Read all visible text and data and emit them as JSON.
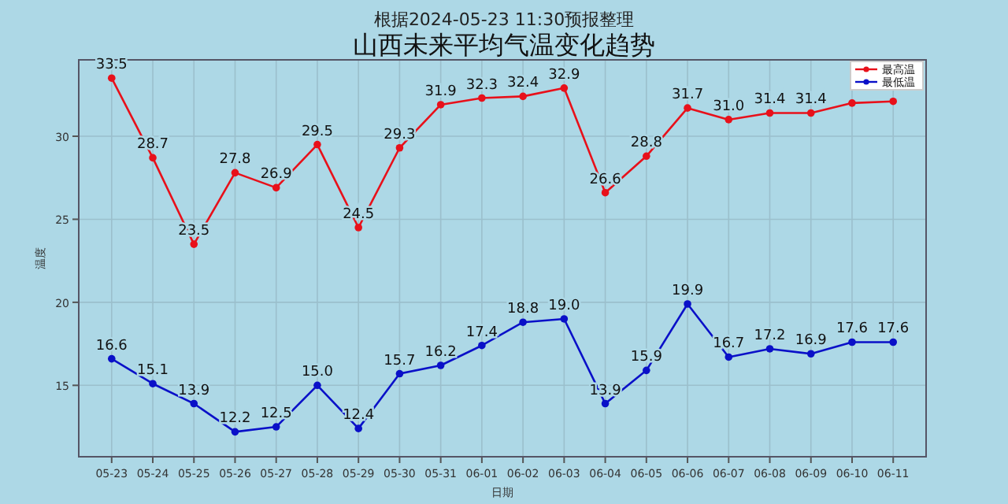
{
  "chart_data": {
    "type": "line",
    "title": "山西未来平均气温变化趋势",
    "subtitle": "根据2024-05-23 11:30预报整理",
    "xlabel": "日期",
    "ylabel": "温度",
    "categories": [
      "05-23",
      "05-24",
      "05-25",
      "05-26",
      "05-27",
      "05-28",
      "05-29",
      "05-30",
      "05-31",
      "06-01",
      "06-02",
      "06-03",
      "06-04",
      "06-05",
      "06-06",
      "06-07",
      "06-08",
      "06-09",
      "06-10",
      "06-11"
    ],
    "series": [
      {
        "name": "最高温",
        "color": "#e8101a",
        "values": [
          33.5,
          28.7,
          23.5,
          27.8,
          26.9,
          29.5,
          24.5,
          29.3,
          31.9,
          32.3,
          32.4,
          32.9,
          26.6,
          28.8,
          31.7,
          31.0,
          31.4,
          31.4,
          32.0,
          32.1
        ],
        "value_labels": [
          "33.5",
          "28.7",
          "23.5",
          "27.8",
          "26.9",
          "29.5",
          "24.5",
          "29.3",
          "31.9",
          "32.3",
          "32.4",
          "32.9",
          "26.6",
          "28.8",
          "31.7",
          "31.0",
          "31.4",
          "31.4",
          null,
          null
        ]
      },
      {
        "name": "最低温",
        "color": "#0a10c8",
        "values": [
          16.6,
          15.1,
          13.9,
          12.2,
          12.5,
          15.0,
          12.4,
          15.7,
          16.2,
          17.4,
          18.8,
          19.0,
          13.9,
          15.9,
          19.9,
          16.7,
          17.2,
          16.9,
          17.6,
          17.6
        ],
        "value_labels": [
          "16.6",
          "15.1",
          "13.9",
          "12.2",
          "12.5",
          "15.0",
          "12.4",
          "15.7",
          "16.2",
          "17.4",
          "18.8",
          "19.0",
          "13.9",
          "15.9",
          "19.9",
          "16.7",
          "17.2",
          "16.9",
          "17.6",
          "17.6"
        ]
      }
    ],
    "ylim": [
      10.7,
      34.6
    ],
    "yticks": [
      15,
      20,
      25,
      30
    ],
    "grid": true,
    "legend": "top right",
    "marker": "circle"
  }
}
